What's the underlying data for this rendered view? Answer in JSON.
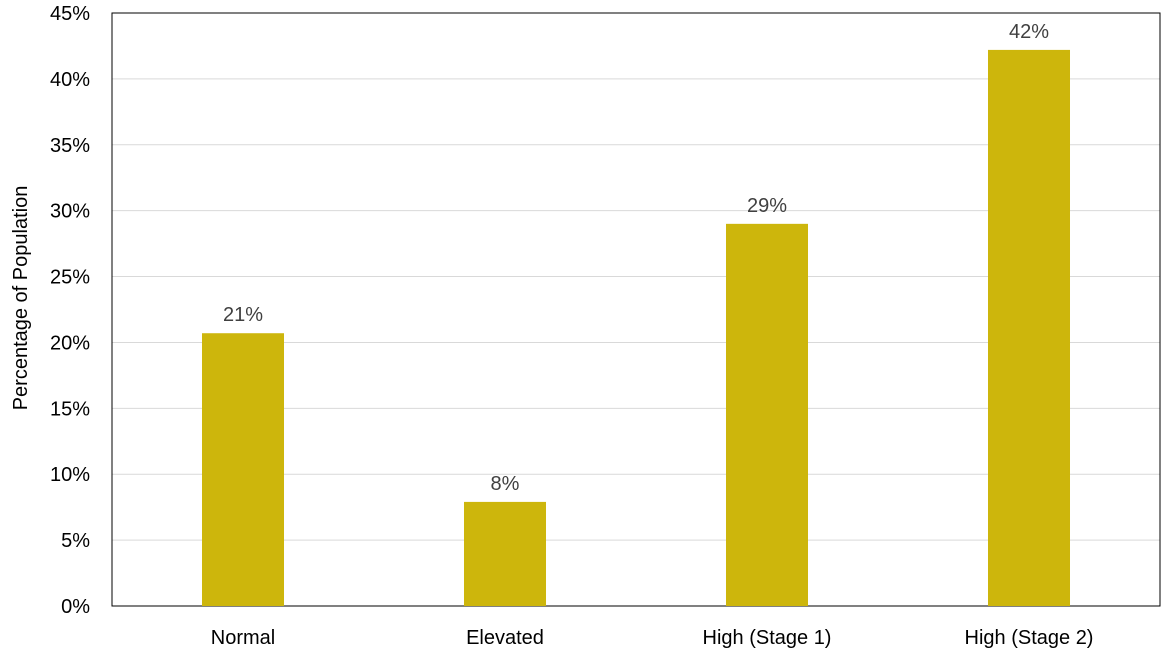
{
  "colors": {
    "bar": "#CDB60C",
    "gridline": "#D9D9D9",
    "axis": "#000000",
    "data_label": "#404040"
  },
  "chart_data": {
    "type": "bar",
    "title": "",
    "xlabel": "",
    "ylabel": "Percentage of Population",
    "categories": [
      "Normal",
      "Elevated",
      "High (Stage 1)",
      "High (Stage 2)"
    ],
    "values": [
      20.7,
      7.9,
      29.0,
      42.2
    ],
    "data_labels": [
      "21%",
      "8%",
      "29%",
      "42%"
    ],
    "ylim": [
      0,
      45
    ],
    "y_ticks": [
      0,
      5,
      10,
      15,
      20,
      25,
      30,
      35,
      40,
      45
    ],
    "y_tick_labels": [
      "0%",
      "5%",
      "10%",
      "15%",
      "20%",
      "25%",
      "30%",
      "35%",
      "40%",
      "45%"
    ],
    "grid": true,
    "legend": "none"
  }
}
